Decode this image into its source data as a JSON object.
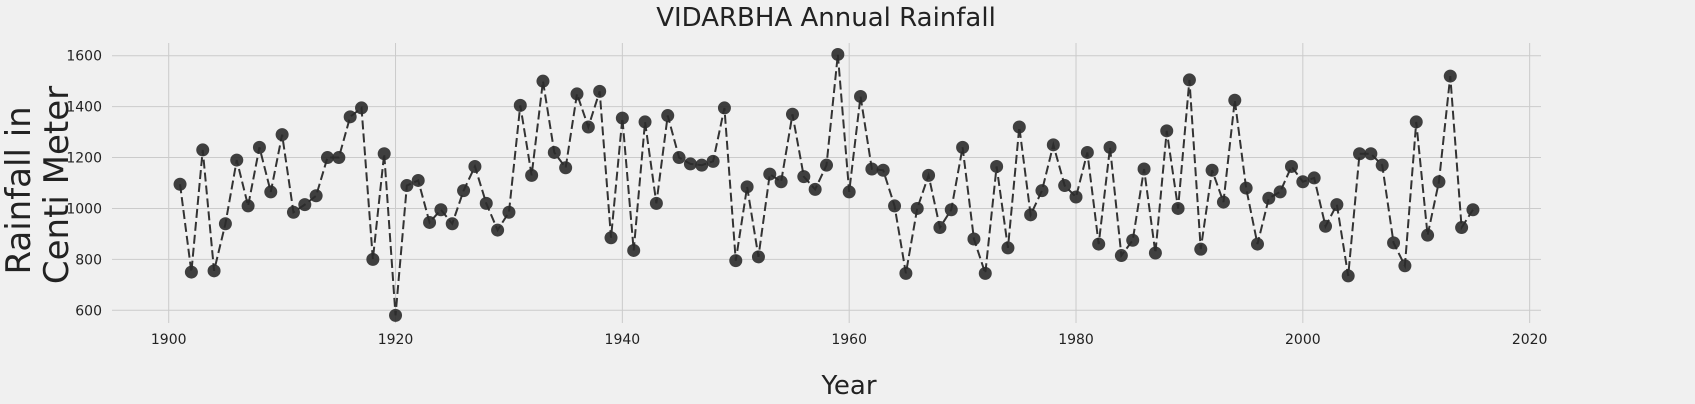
{
  "chart_data": {
    "type": "line",
    "title": "VIDARBHA Annual Rainfall",
    "xlabel": "Year",
    "ylabel_lines": [
      "Rainfall in",
      "Centi Meter"
    ],
    "xlim": [
      1895,
      2021
    ],
    "ylim": [
      550,
      1650
    ],
    "x_ticks": [
      1900,
      1920,
      1940,
      1960,
      1980,
      2000,
      2020
    ],
    "y_ticks": [
      600,
      800,
      1000,
      1200,
      1400,
      1600
    ],
    "grid": true,
    "line_style": "dashed",
    "line_color": "#333333",
    "marker_color": "#2b2b2b",
    "background": "#f0f0f0",
    "series": [
      {
        "x": [
          1901,
          1902,
          1903,
          1904,
          1905,
          1906,
          1907,
          1908,
          1909,
          1910,
          1911,
          1912,
          1913,
          1914,
          1915,
          1916,
          1917,
          1918,
          1919,
          1920,
          1921,
          1922,
          1923,
          1924,
          1925,
          1926,
          1927,
          1928,
          1929,
          1930,
          1931,
          1932,
          1933,
          1934,
          1935,
          1936,
          1937,
          1938,
          1939,
          1940,
          1941,
          1942,
          1943,
          1944,
          1945,
          1946,
          1947,
          1948,
          1949,
          1950,
          1951,
          1952,
          1953,
          1954,
          1955,
          1956,
          1957,
          1958,
          1959,
          1960,
          1961,
          1962,
          1963,
          1964,
          1965,
          1966,
          1967,
          1968,
          1969,
          1970,
          1971,
          1972,
          1973,
          1974,
          1975,
          1976,
          1977,
          1978,
          1979,
          1980,
          1981,
          1982,
          1983,
          1984,
          1985,
          1986,
          1987,
          1988,
          1989,
          1990,
          1991,
          1992,
          1993,
          1994,
          1995,
          1996,
          1997,
          1998,
          1999,
          2000,
          2001,
          2002,
          2003,
          2004,
          2005,
          2006,
          2007,
          2008,
          2009,
          2010,
          2011,
          2012,
          2013,
          2014,
          2015
        ],
        "y": [
          1095,
          750,
          1230,
          755,
          940,
          1190,
          1010,
          1240,
          1065,
          1290,
          985,
          1015,
          1050,
          1200,
          1200,
          1360,
          1395,
          800,
          1215,
          580,
          1090,
          1110,
          945,
          995,
          940,
          1070,
          1165,
          1020,
          915,
          985,
          1405,
          1130,
          1500,
          1220,
          1160,
          1450,
          1320,
          1460,
          885,
          1355,
          835,
          1340,
          1020,
          1365,
          1200,
          1175,
          1170,
          1185,
          1395,
          795,
          1085,
          810,
          1135,
          1105,
          1370,
          1125,
          1075,
          1170,
          1605,
          1065,
          1440,
          1155,
          1150,
          1010,
          745,
          1000,
          1130,
          925,
          995,
          1240,
          880,
          745,
          1165,
          845,
          1320,
          975,
          1070,
          1250,
          1090,
          1045,
          1220,
          860,
          1240,
          815,
          875,
          1155,
          825,
          1305,
          1000,
          1505,
          840,
          1150,
          1025,
          1425,
          1080,
          860,
          1040,
          1065,
          1165,
          1105,
          1120,
          930,
          1015,
          735,
          1215,
          1215,
          1170,
          865,
          775,
          1340,
          895,
          1105,
          1520,
          925,
          995
        ]
      }
    ]
  }
}
